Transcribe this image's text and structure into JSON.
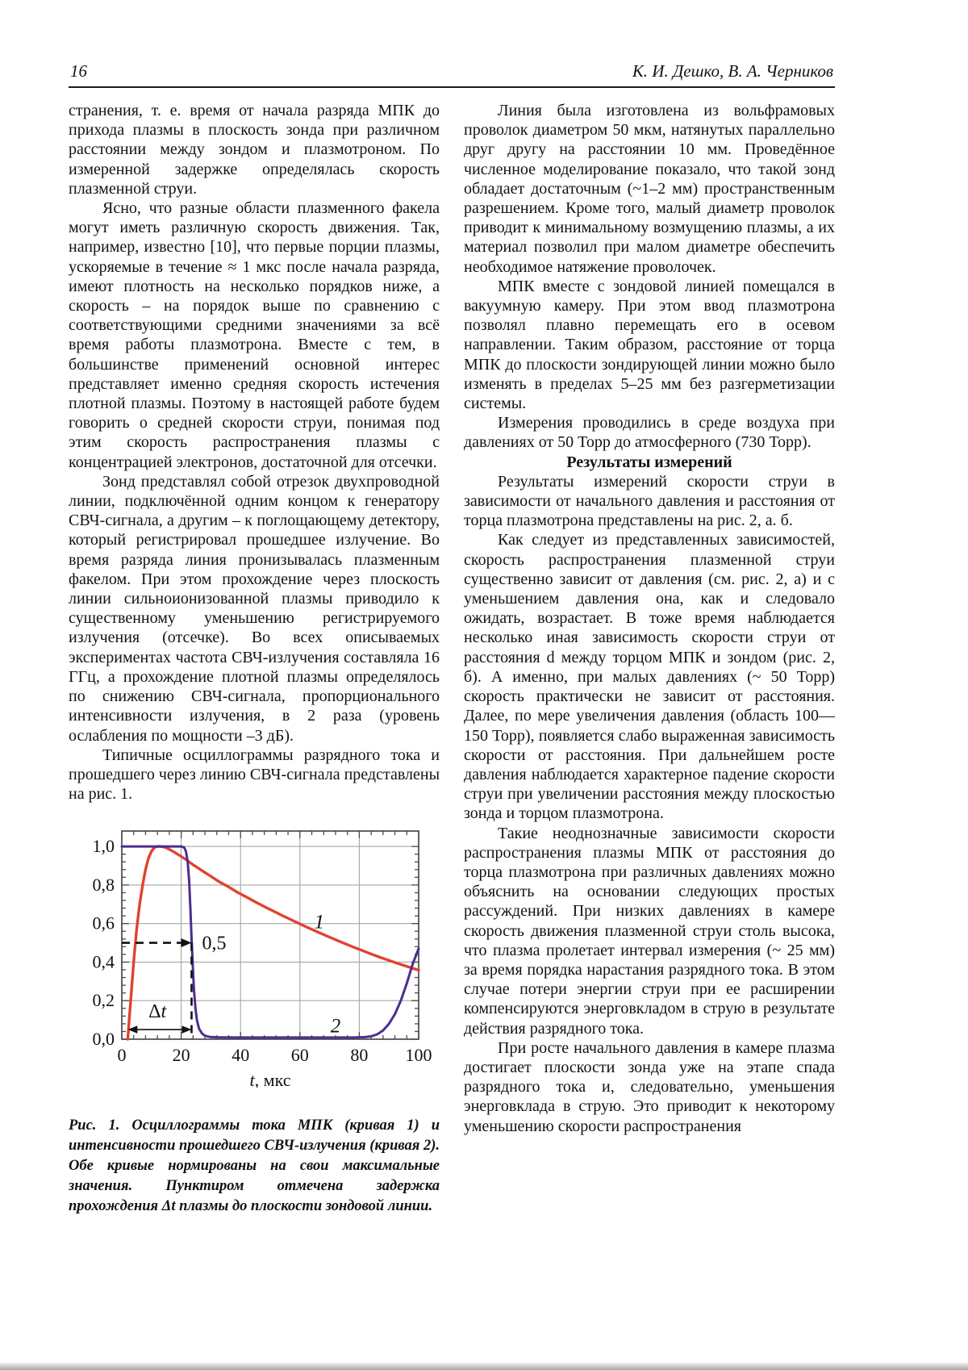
{
  "page": {
    "number": "16",
    "running_head": "К. И. Дешко, В. А. Черников"
  },
  "left_column": {
    "paragraphs": [
      "странения, т. е. время от начала разряда МПК до прихода плазмы в плоскость зонда при различном расстоянии между зондом и плазмотроном. По измеренной задержке определялась скорость плазменной струи.",
      "Ясно, что разные области плазменного факела могут иметь различную скорость движения. Так, например, известно [10], что первые порции плазмы, ускоряемые в течение ≈ 1 мкс после начала разряда, имеют плотность на несколько порядков ниже, а скорость – на порядок выше по сравнению с соответствующими средними значениями за всё время работы плазмотрона. Вместе с тем, в большинстве применений основной интерес представляет именно средняя скорость истечения плотной плазмы. Поэтому в настоящей работе будем говорить о средней скорости струи, понимая под этим скорость распространения плазмы с концентрацией электронов, достаточной для отсечки.",
      "Зонд представлял собой отрезок двухпроводной линии, подключённой одним концом к генератору СВЧ-сигнала, а другим – к поглощающему детектору, который регистрировал прошедшее излучение. Во время разряда линия пронизывалась плазменным факелом. При этом прохождение через плоскость линии сильноионизованной плазмы приводило к существенному уменьшению регистрируемого излучения (отсечке). Во всех описываемых экспериментах частота СВЧ-излучения составляла 16 ГГц, а прохождение плотной плазмы определялось по снижению СВЧ-сигнала, пропорционального интенсивности излучения, в 2 раза (уровень ослабления по мощности –3 дБ).",
      "Типичные осциллограммы разрядного тока и прошедшего через линию СВЧ-сигнала представлены на рис. 1."
    ],
    "figure_caption": "Рис. 1. Осциллограммы тока МПК (кривая 1) и интенсивности прошедшего СВЧ-излучения (кривая 2). Обе кривые нормированы на свои максимальные значения. Пунктиром отмечена задержка прохождения Δt плазмы до плоскости зондовой линии."
  },
  "right_column": {
    "paragraphs_before_heading": [
      "Линия была изготовлена из вольфрамовых проволок диаметром 50 мкм, натянутых параллельно друг другу на расстоянии 10 мм. Проведённое численное моделирование показало, что такой зонд обладает достаточным (~1–2 мм) пространственным разрешением. Кроме того, малый диаметр проволок приводит к минимальному возмущению плазмы, а их материал позволил при малом диаметре обеспечить необходимое натяжение проволочек.",
      "МПК вместе с зондовой линией помещался в вакуумную камеру. При этом ввод плазмотрона позволял плавно перемещать его в осевом направлении. Таким образом, расстояние от торца МПК до плоскости зондирующей линии можно было изменять в пределах 5–25 мм без разгерметизации системы.",
      "Измерения проводились в среде воздуха при давлениях от 50 Торр до атмосферного (730 Торр)."
    ],
    "heading": "Результаты измерений",
    "paragraphs_after_heading": [
      "Результаты измерений скорости струи в зависимости от начального давления и расстояния от торца плазмотрона представлены на рис. 2, а. б.",
      "Как следует из представленных зависимостей, скорость распространения плазменной струи существенно зависит от давления (см. рис. 2, а) и с уменьшением давления она, как и следовало ожидать, возрастает. В тоже время наблюдается несколько иная зависимость скорости струи от расстояния d между торцом МПК и зондом (рис. 2, б). А именно, при малых давлениях (~ 50 Торр) скорость практически не зависит от расстояния. Далее, по мере увеличения давления (область 100—150 Торр), появляется слабо выраженная зависимость скорости от расстояния. При дальнейшем росте давления наблюдается характерное падение скорости струи при увеличении расстояния между плоскостью зонда и торцом плазмотрона.",
      "Такие неоднозначные зависимости скорости распространения плазмы МПК от расстояния до торца плазмотрона при различных давлениях можно объяснить на основании следующих простых рассуждений. При низких давлениях в камере скорость движения плазменной струи столь высока, что плазма пролетает интервал измерения (~ 25 мм) за время порядка нарастания разрядного тока. В этом случае потери энергии струи при ее расширении компенсируются энерговкладом в струю в результате действия разрядного тока.",
      "При росте начального давления в камере плазма достигает плоскости зонда уже на этапе спада разрядного тока и, следовательно, уменьшения энерговклада в струю. Это приводит к некоторому уменьшению скорости распространения"
    ]
  },
  "chart_data": {
    "type": "line",
    "title": "",
    "xlabel_var": "t",
    "xlabel_unit": ", мкс",
    "ylabel": "",
    "xlim": [
      0,
      100
    ],
    "ylim": [
      0,
      1.08
    ],
    "x_ticks": [
      0,
      20,
      40,
      60,
      80,
      100
    ],
    "x_minor_step": 4,
    "y_ticks": [
      0,
      0.2,
      0.4,
      0.6,
      0.8,
      1.0
    ],
    "y_tick_labels": [
      "0,0",
      "0,2",
      "0,4",
      "0,6",
      "0,8",
      "1,0"
    ],
    "y_minor_step": 0.04,
    "grid": true,
    "frame_color": "#4a4a4a",
    "grid_color": "#a6a6a6",
    "series": [
      {
        "name": "ток МПК (кривая 1), нормированный",
        "label": "1",
        "label_pos": [
          66.5,
          0.575
        ],
        "color": "#e0432f",
        "width": 3.4,
        "points": [
          [
            2,
            0
          ],
          [
            2.4,
            0.08
          ],
          [
            3,
            0.2
          ],
          [
            3.6,
            0.32
          ],
          [
            4.2,
            0.44
          ],
          [
            5,
            0.57
          ],
          [
            6,
            0.7
          ],
          [
            7,
            0.8
          ],
          [
            8,
            0.88
          ],
          [
            9,
            0.94
          ],
          [
            10,
            0.975
          ],
          [
            11,
            0.995
          ],
          [
            12,
            1.0
          ],
          [
            13,
            1.0
          ],
          [
            14,
            0.998
          ],
          [
            15,
            0.993
          ],
          [
            16,
            0.985
          ],
          [
            18,
            0.968
          ],
          [
            20,
            0.948
          ],
          [
            22,
            0.928
          ],
          [
            24,
            0.905
          ],
          [
            26,
            0.885
          ],
          [
            28,
            0.865
          ],
          [
            30,
            0.845
          ],
          [
            33,
            0.815
          ],
          [
            36,
            0.79
          ],
          [
            39,
            0.762
          ],
          [
            42,
            0.737
          ],
          [
            45,
            0.712
          ],
          [
            48,
            0.688
          ],
          [
            51,
            0.665
          ],
          [
            54,
            0.642
          ],
          [
            57,
            0.62
          ],
          [
            60,
            0.598
          ],
          [
            63,
            0.577
          ],
          [
            66,
            0.556
          ],
          [
            69,
            0.536
          ],
          [
            72,
            0.516
          ],
          [
            75,
            0.497
          ],
          [
            78,
            0.478
          ],
          [
            81,
            0.46
          ],
          [
            84,
            0.442
          ],
          [
            87,
            0.425
          ],
          [
            90,
            0.409
          ],
          [
            93,
            0.393
          ],
          [
            96,
            0.378
          ],
          [
            98,
            0.368
          ],
          [
            100,
            0.358
          ]
        ]
      },
      {
        "name": "интенсивность прошедшего СВЧ-излучения (кривая 2), нормированная",
        "label": "2",
        "label_pos": [
          72,
          0.035
        ],
        "color": "#4b2e91",
        "width": 3.0,
        "points": [
          [
            0,
            1.0
          ],
          [
            20,
            1.0
          ],
          [
            21,
            0.995
          ],
          [
            21.6,
            0.975
          ],
          [
            22.2,
            0.92
          ],
          [
            22.7,
            0.82
          ],
          [
            23.1,
            0.68
          ],
          [
            23.5,
            0.52
          ],
          [
            23.9,
            0.38
          ],
          [
            24.3,
            0.26
          ],
          [
            24.8,
            0.16
          ],
          [
            25.3,
            0.1
          ],
          [
            26,
            0.055
          ],
          [
            27,
            0.03
          ],
          [
            28,
            0.018
          ],
          [
            29.5,
            0.012
          ],
          [
            32,
            0.01
          ],
          [
            40,
            0.009
          ],
          [
            50,
            0.009
          ],
          [
            60,
            0.009
          ],
          [
            70,
            0.009
          ],
          [
            78,
            0.009
          ],
          [
            82,
            0.011
          ],
          [
            84,
            0.015
          ],
          [
            86,
            0.025
          ],
          [
            88,
            0.045
          ],
          [
            90,
            0.08
          ],
          [
            92,
            0.13
          ],
          [
            94,
            0.2
          ],
          [
            96,
            0.29
          ],
          [
            98,
            0.39
          ],
          [
            100,
            0.47
          ]
        ]
      }
    ],
    "annotations": {
      "threshold_label": "0,5",
      "threshold_y": 0.5,
      "threshold_x": 23.5,
      "delta_label": "Δt",
      "delta_x1": 2,
      "delta_x2": 23.5,
      "delta_y": 0.05
    }
  }
}
